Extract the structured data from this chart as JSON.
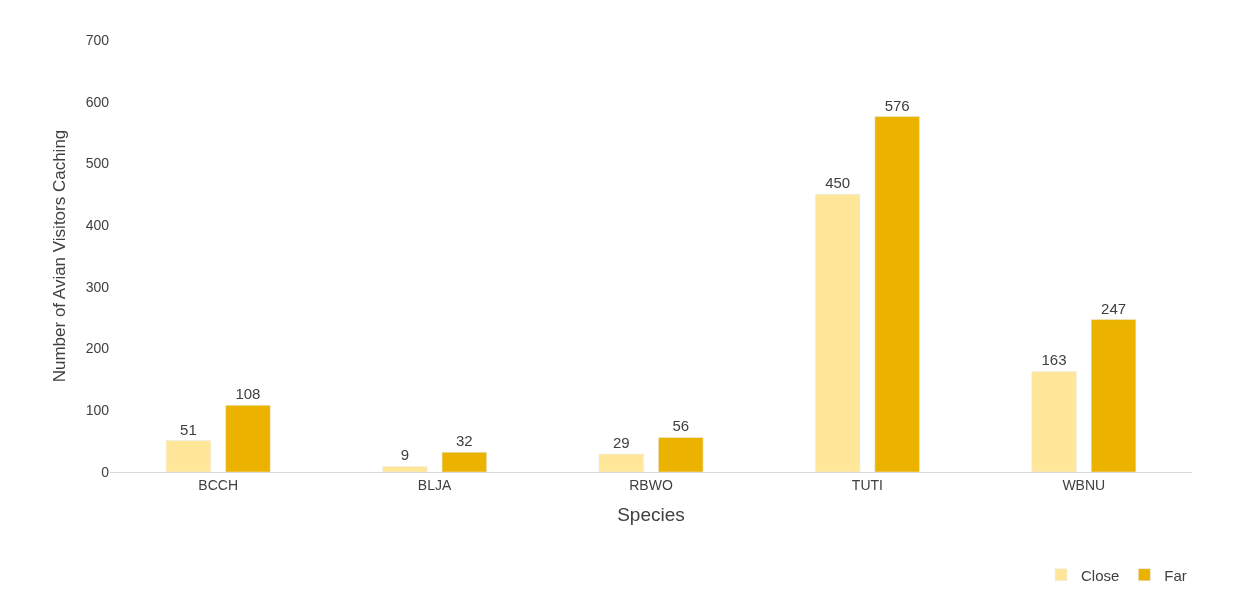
{
  "chart_data": {
    "type": "bar",
    "xlabel": "Species",
    "ylabel": "Number of Avian Visitors Caching",
    "categories": [
      "BCCH",
      "BLJA",
      "RBWO",
      "TUTI",
      "WBNU"
    ],
    "series": [
      {
        "name": "Close",
        "color": "#ffe699",
        "values": [
          51,
          9,
          29,
          450,
          163
        ]
      },
      {
        "name": "Far",
        "color": "#ebb300",
        "values": [
          108,
          32,
          56,
          576,
          247
        ]
      }
    ],
    "ylim": [
      0,
      700
    ],
    "yticks": [
      0,
      100,
      200,
      300,
      400,
      500,
      600,
      700
    ],
    "grid": false,
    "legend": "bottom right",
    "data_labels": true
  }
}
